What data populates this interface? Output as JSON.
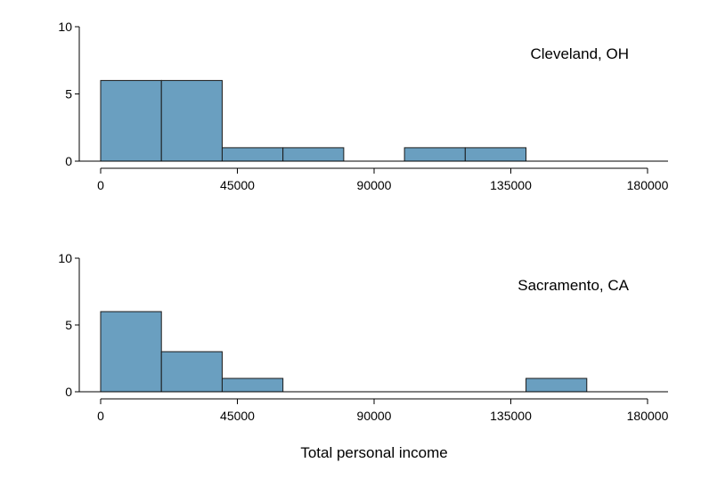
{
  "chart_data": {
    "type": "bar",
    "xlabel": "Total personal income",
    "x_ticks": [
      0,
      45000,
      90000,
      135000,
      180000
    ],
    "x_tick_labels": [
      "0",
      "45000",
      "90000",
      "135000",
      "180000"
    ],
    "y_ticks": [
      0,
      5,
      10
    ],
    "y_tick_labels": [
      "0",
      "5",
      "10"
    ],
    "xlim": [
      0,
      180000
    ],
    "ylim": [
      0,
      10
    ],
    "bin_edges": [
      0,
      20000,
      40000,
      60000,
      80000,
      100000,
      120000,
      140000,
      160000,
      180000
    ],
    "bar_color": "#6a9fc0",
    "grid": false,
    "panels": [
      {
        "label": "Cleveland, OH",
        "counts": [
          6,
          6,
          1,
          1,
          0,
          1,
          1,
          0,
          0
        ]
      },
      {
        "label": "Sacramento, CA",
        "counts": [
          6,
          3,
          1,
          0,
          0,
          0,
          0,
          1,
          0
        ]
      }
    ]
  }
}
